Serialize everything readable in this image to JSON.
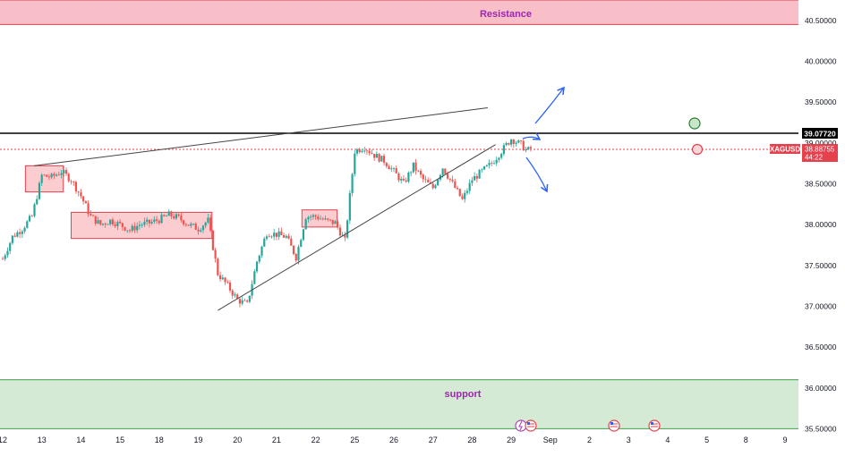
{
  "chart_data": {
    "type": "candlestick",
    "symbol": "XAGUSD",
    "last_price": "38.88755",
    "countdown": "44:22",
    "resistance_label": "Resistance",
    "support_label": "support",
    "horizontal_level": "39.07720",
    "ylim": [
      35.45,
      40.75
    ],
    "y_ticks": [
      "40.50000",
      "40.00000",
      "39.50000",
      "39.00000",
      "38.50000",
      "38.00000",
      "37.50000",
      "37.00000",
      "36.50000",
      "36.00000",
      "35.50000"
    ],
    "y_tick_values": [
      40.5,
      40.0,
      39.5,
      39.0,
      38.5,
      38.0,
      37.5,
      37.0,
      36.5,
      36.0,
      35.5
    ],
    "x_ticks": [
      "12",
      "13",
      "14",
      "15",
      "18",
      "19",
      "20",
      "21",
      "22",
      "25",
      "26",
      "27",
      "28",
      "29",
      "Sep",
      "2",
      "3",
      "4",
      "5",
      "8",
      "9"
    ],
    "zones": [
      {
        "name": "Resistance",
        "y_top": 40.75,
        "y_bottom": 40.45,
        "color": "#f8bfc8"
      },
      {
        "name": "support",
        "y_top": 36.1,
        "y_bottom": 35.5,
        "color": "#d5ead5"
      }
    ],
    "trendlines": [
      {
        "name": "upper-wedge",
        "points": [
          [
            0.8,
            38.72
          ],
          [
            12.4,
            39.43
          ]
        ]
      },
      {
        "name": "lower-wedge",
        "points": [
          [
            5.5,
            36.95
          ],
          [
            12.6,
            38.98
          ]
        ]
      }
    ],
    "consolidation_boxes": [
      {
        "x0": 0.58,
        "x1": 1.55,
        "y0": 38.4,
        "y1": 38.72
      },
      {
        "x0": 1.75,
        "x1": 5.35,
        "y0": 37.83,
        "y1": 38.15
      },
      {
        "x0": 7.65,
        "x1": 8.55,
        "y0": 37.97,
        "y1": 38.18
      }
    ],
    "closes": [
      [
        0.0,
        37.58
      ],
      [
        0.25,
        37.85
      ],
      [
        0.5,
        37.95
      ],
      [
        0.75,
        38.1
      ],
      [
        1.0,
        38.6
      ],
      [
        1.25,
        38.58
      ],
      [
        1.5,
        38.65
      ],
      [
        1.75,
        38.55
      ],
      [
        2.0,
        38.35
      ],
      [
        2.25,
        38.1
      ],
      [
        2.5,
        38.0
      ],
      [
        2.75,
        38.05
      ],
      [
        3.0,
        38.0
      ],
      [
        3.25,
        37.93
      ],
      [
        3.5,
        38.0
      ],
      [
        3.75,
        38.02
      ],
      [
        4.0,
        38.06
      ],
      [
        4.25,
        38.12
      ],
      [
        4.5,
        38.08
      ],
      [
        4.75,
        38.0
      ],
      [
        5.0,
        37.95
      ],
      [
        5.25,
        38.05
      ],
      [
        5.5,
        37.4
      ],
      [
        5.75,
        37.25
      ],
      [
        6.0,
        37.08
      ],
      [
        6.25,
        37.02
      ],
      [
        6.5,
        37.55
      ],
      [
        6.75,
        37.9
      ],
      [
        7.0,
        37.88
      ],
      [
        7.25,
        37.85
      ],
      [
        7.5,
        37.6
      ],
      [
        7.75,
        38.1
      ],
      [
        8.0,
        38.1
      ],
      [
        8.25,
        38.05
      ],
      [
        8.5,
        38.02
      ],
      [
        8.75,
        37.8
      ],
      [
        9.0,
        38.9
      ],
      [
        9.25,
        38.95
      ],
      [
        9.5,
        38.85
      ],
      [
        9.75,
        38.78
      ],
      [
        10.0,
        38.65
      ],
      [
        10.25,
        38.5
      ],
      [
        10.5,
        38.72
      ],
      [
        10.75,
        38.55
      ],
      [
        11.0,
        38.45
      ],
      [
        11.25,
        38.7
      ],
      [
        11.5,
        38.5
      ],
      [
        11.75,
        38.3
      ],
      [
        12.0,
        38.55
      ],
      [
        12.25,
        38.65
      ],
      [
        12.5,
        38.75
      ],
      [
        12.75,
        38.9
      ],
      [
        13.0,
        39.05
      ],
      [
        13.25,
        38.98
      ],
      [
        13.4,
        38.9
      ],
      [
        13.55,
        38.95
      ]
    ]
  }
}
